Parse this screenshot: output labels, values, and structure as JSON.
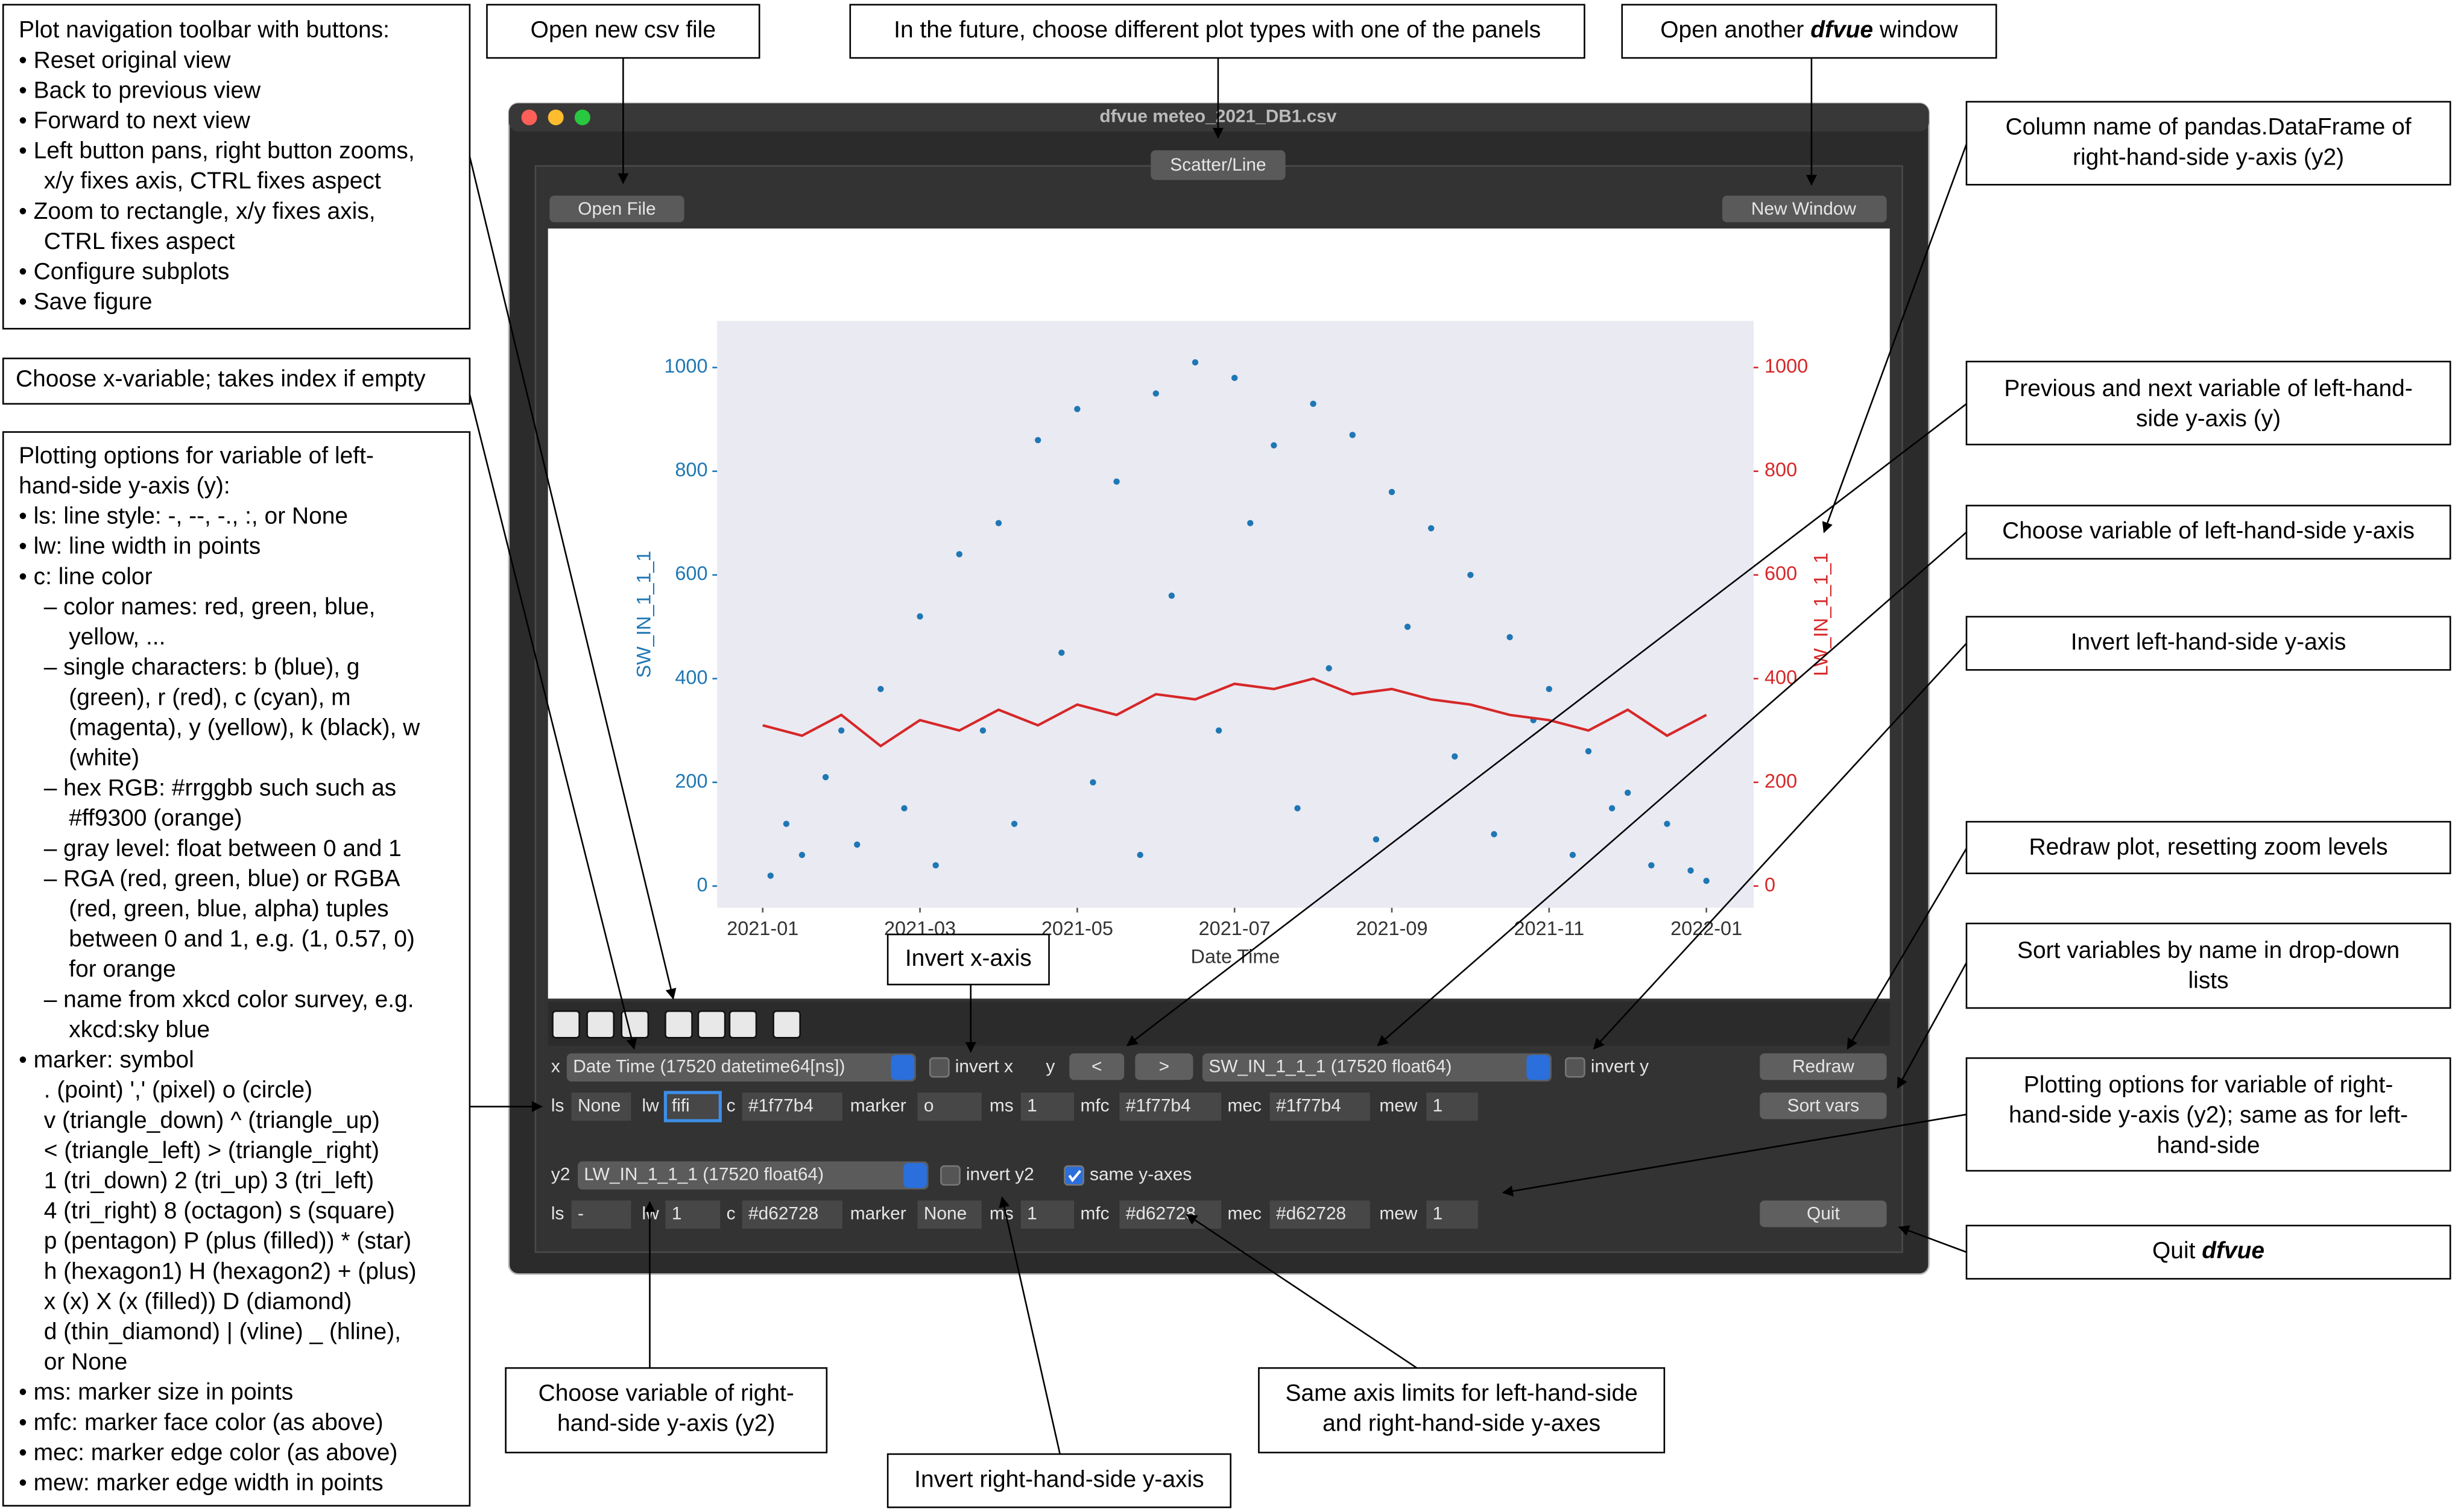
{
  "window": {
    "title": "dfvue meteo_2021_DB1.csv",
    "tab": "Scatter/Line",
    "open_file": "Open File",
    "new_window": "New Window"
  },
  "chart_data": {
    "type": "scatter",
    "x_label": "Date Time",
    "y_label": "SW_IN_1_1_1",
    "y2_label": "LW_IN_1_1_1",
    "background": "#eaeaf2",
    "grid": false,
    "xlim": [
      -0.58,
      12.6
    ],
    "xticks": [
      {
        "value": 0,
        "label": "2021-01"
      },
      {
        "value": 2,
        "label": "2021-03"
      },
      {
        "value": 4,
        "label": "2021-05"
      },
      {
        "value": 6,
        "label": "2021-07"
      },
      {
        "value": 8,
        "label": "2021-09"
      },
      {
        "value": 10,
        "label": "2021-11"
      },
      {
        "value": 12,
        "label": "2022-01"
      }
    ],
    "ylim": [
      -42,
      1090
    ],
    "yticks": [
      0,
      200,
      400,
      600,
      800,
      1000
    ],
    "y2lim": [
      -42,
      1090
    ],
    "y2ticks": [
      0,
      200,
      400,
      600,
      800,
      1000
    ],
    "series": [
      {
        "name": "SW_IN_1_1_1",
        "type": "scatter",
        "color": "#1f77b4",
        "x": [
          0.1,
          0.3,
          0.5,
          0.8,
          1.0,
          1.2,
          1.5,
          1.8,
          2.0,
          2.2,
          2.5,
          2.8,
          3.0,
          3.2,
          3.5,
          3.8,
          4.0,
          4.2,
          4.5,
          4.8,
          5.0,
          5.2,
          5.5,
          5.8,
          6.0,
          6.2,
          6.5,
          6.8,
          7.0,
          7.2,
          7.5,
          7.8,
          8.0,
          8.2,
          8.5,
          8.8,
          9.0,
          9.3,
          9.5,
          9.8,
          10.0,
          10.3,
          10.5,
          10.8,
          11.0,
          11.3,
          11.5,
          11.8,
          12.0
        ],
        "values": [
          20,
          120,
          60,
          210,
          300,
          80,
          380,
          150,
          520,
          40,
          640,
          300,
          700,
          120,
          860,
          450,
          920,
          200,
          780,
          60,
          950,
          560,
          1010,
          300,
          980,
          700,
          850,
          150,
          930,
          420,
          870,
          90,
          760,
          500,
          690,
          250,
          600,
          100,
          480,
          320,
          380,
          60,
          260,
          150,
          180,
          40,
          120,
          30,
          10
        ]
      },
      {
        "name": "LW_IN_1_1_1",
        "type": "line",
        "axis": "y2",
        "color": "#d62728",
        "x": [
          0,
          0.5,
          1,
          1.5,
          2,
          2.5,
          3,
          3.5,
          4,
          4.5,
          5,
          5.5,
          6,
          6.5,
          7,
          7.5,
          8,
          8.5,
          9,
          9.5,
          10,
          10.5,
          11,
          11.5,
          12
        ],
        "values": [
          310,
          290,
          330,
          270,
          320,
          300,
          340,
          310,
          350,
          330,
          370,
          360,
          390,
          380,
          400,
          370,
          380,
          360,
          350,
          330,
          320,
          300,
          340,
          290,
          330
        ]
      }
    ]
  },
  "controls": {
    "x_label": "x",
    "x_select": "Date Time (17520 datetime64[ns])",
    "invert_x": "invert x",
    "y_label": "y",
    "prev": "<",
    "next": ">",
    "y_select": "SW_IN_1_1_1 (17520 float64)",
    "invert_y": "invert y",
    "redraw": "Redraw",
    "sort_vars": "Sort vars",
    "quit": "Quit",
    "y2_label": "y2",
    "y2_select": "LW_IN_1_1_1 (17520 float64)",
    "invert_y2": "invert y2",
    "same_y_axes": "same y-axes",
    "same_y_axes_checked": true,
    "y_options": [
      {
        "label": "ls",
        "value": "None"
      },
      {
        "label": "lw",
        "value": "fifi"
      },
      {
        "label": "c",
        "value": "#1f77b4"
      },
      {
        "label": "marker",
        "value": "o"
      },
      {
        "label": "ms",
        "value": "1"
      },
      {
        "label": "mfc",
        "value": "#1f77b4"
      },
      {
        "label": "mec",
        "value": "#1f77b4"
      },
      {
        "label": "mew",
        "value": "1"
      }
    ],
    "y2_options": [
      {
        "label": "ls",
        "value": "-"
      },
      {
        "label": "lw",
        "value": "1"
      },
      {
        "label": "c",
        "value": "#d62728"
      },
      {
        "label": "marker",
        "value": "None"
      },
      {
        "label": "ms",
        "value": "1"
      },
      {
        "label": "mfc",
        "value": "#d62728"
      },
      {
        "label": "mec",
        "value": "#d62728"
      },
      {
        "label": "mew",
        "value": "1"
      }
    ]
  },
  "annotations": [
    {
      "lines": [
        "Plot navigation toolbar with buttons:",
        "• Reset original view",
        "• Back to previous view",
        "• Forward to next view",
        "• Left button pans, right button zooms,",
        "x/y fixes axis, CTRL fixes aspect",
        "• Zoom to rectangle, x/y fixes axis,",
        "CTRL fixes aspect",
        "• Configure subplots",
        "• Save figure"
      ]
    },
    {
      "lines": [
        "Choose x-variable; takes index if empty"
      ]
    },
    {
      "lines": [
        "Plotting options for variable of left-",
        "hand-side y-axis (y):",
        "• ls: line style: -, --, -., :, or None",
        "• lw: line width in points",
        "• c: line color",
        "– color names: red, green, blue,",
        "yellow, ...",
        "– single characters: b (blue), g",
        "(green), r (red), c (cyan), m",
        "(magenta), y (yellow), k (black), w",
        "(white)",
        "– hex RGB: #rrggbb such such as",
        "#ff9300 (orange)",
        "– gray level: float between 0 and 1",
        "– RGA (red, green, blue) or RGBA",
        "(red, green, blue, alpha) tuples",
        "between 0 and 1, e.g. (1, 0.57, 0)",
        "for orange",
        "– name from xkcd color survey, e.g.",
        "xkcd:sky blue",
        "• marker: symbol",
        ". (point) ',' (pixel) o (circle)",
        "v (triangle_down) ^ (triangle_up)",
        "< (triangle_left) > (triangle_right)",
        "1 (tri_down) 2 (tri_up) 3 (tri_left)",
        "4 (tri_right) 8 (octagon) s (square)",
        "p (pentagon) P (plus (filled)) * (star)",
        "h (hexagon1) H (hexagon2) + (plus)",
        "x (x) X (x (filled)) D (diamond)",
        "d (thin_diamond) | (vline) _ (hline),",
        "or None",
        "• ms: marker size in points",
        "• mfc: marker face color (as above)",
        "• mec: marker edge color (as above)",
        "• mew: marker edge width in points"
      ]
    },
    {
      "lines": [
        "Open new csv file"
      ]
    },
    {
      "lines": [
        "In the future, choose different plot types with one of the panels"
      ]
    },
    {
      "parts": [
        "Open another ",
        "dfvue",
        " window"
      ],
      "emphasized_part": 1
    },
    {
      "lines": [
        "Column name of pandas.DataFrame of",
        "right-hand-side y-axis (y2)"
      ]
    },
    {
      "lines": [
        "Previous and next variable of left-hand-",
        "side y-axis (y)"
      ]
    },
    {
      "lines": [
        "Choose variable of left-hand-side y-axis"
      ]
    },
    {
      "lines": [
        "Invert left-hand-side y-axis"
      ]
    },
    {
      "lines": [
        "Redraw plot, resetting zoom levels"
      ]
    },
    {
      "lines": [
        "Sort variables by name in drop-down",
        "lists"
      ]
    },
    {
      "lines": [
        "Plotting options for variable of right-",
        "hand-side y-axis (y2); same as for left-",
        "hand-side"
      ]
    },
    {
      "parts": [
        "Quit ",
        "dfvue"
      ],
      "emphasized_part": 1
    },
    {
      "lines": [
        "Invert x-axis"
      ]
    },
    {
      "lines": [
        "Choose variable of right-",
        "hand-side y-axis (y2)"
      ]
    },
    {
      "lines": [
        "Same axis limits for left-hand-side",
        "and right-hand-side y-axes"
      ]
    },
    {
      "lines": [
        "Invert right-hand-side y-axis"
      ]
    }
  ]
}
